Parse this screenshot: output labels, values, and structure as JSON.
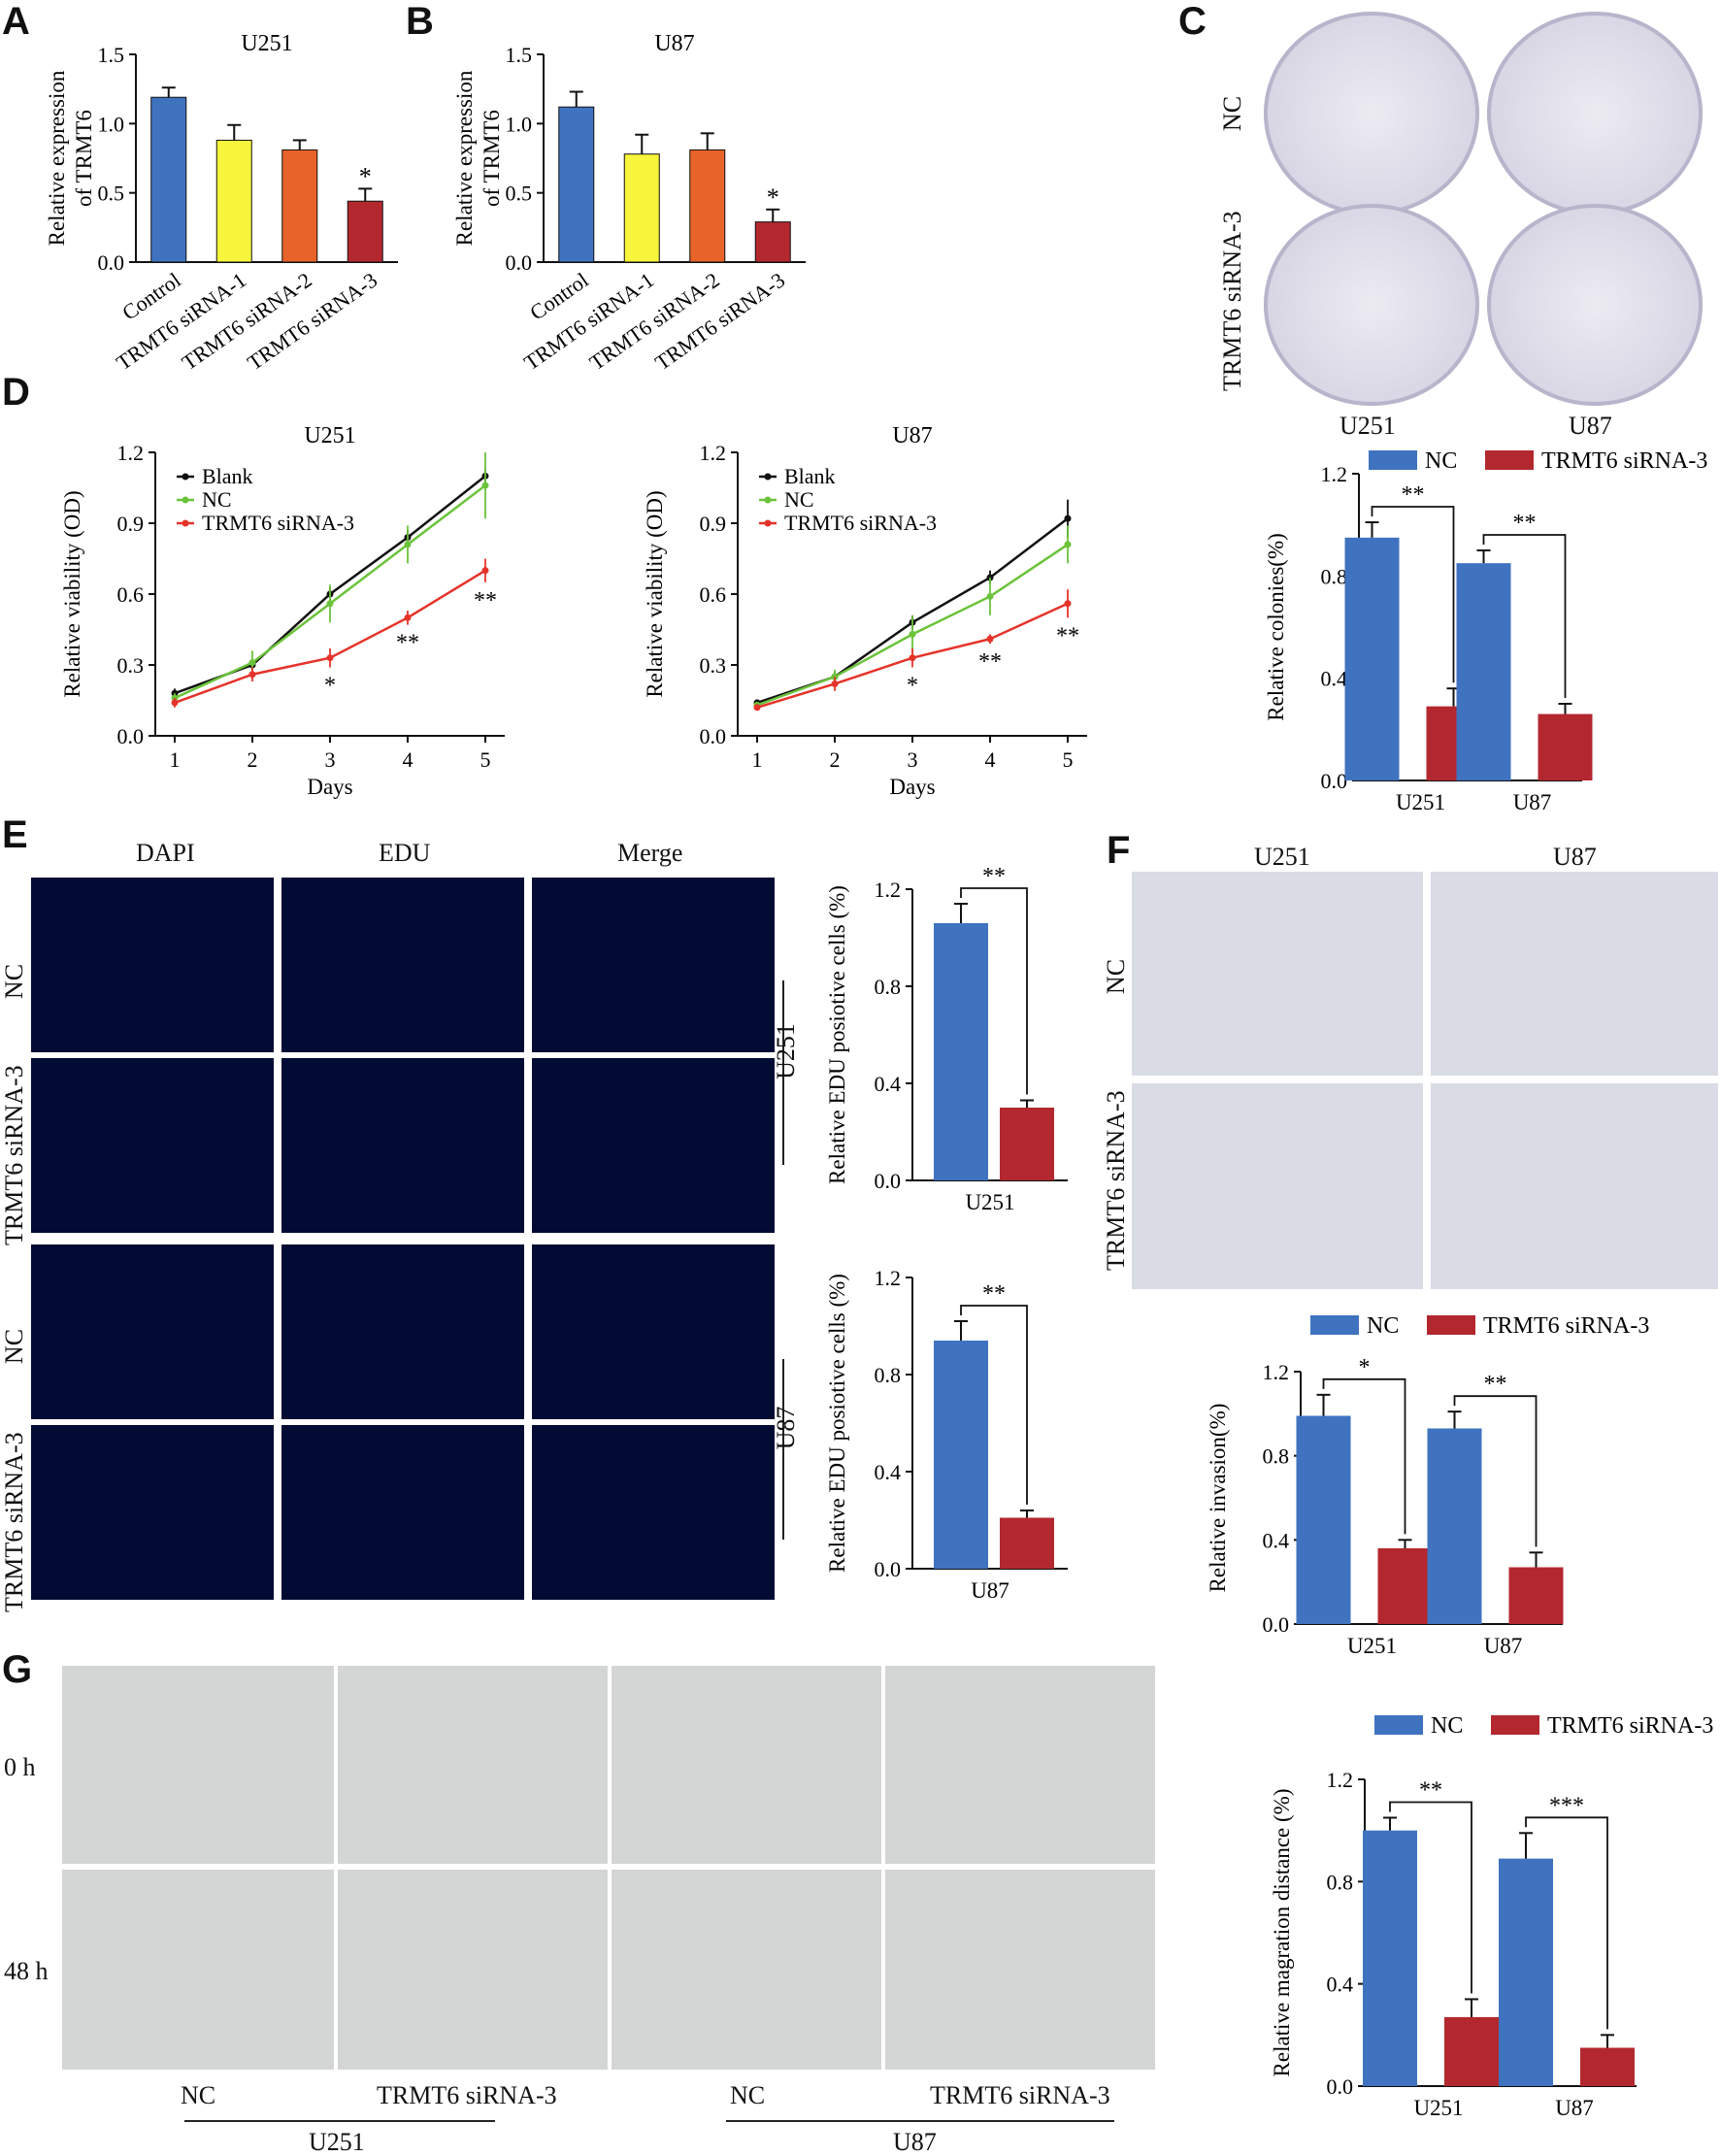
{
  "panels": {
    "A": "A",
    "B": "B",
    "C": "C",
    "D": "D",
    "E": "E",
    "F": "F",
    "G": "G"
  },
  "colors": {
    "blue": "#3f73c0",
    "yellow": "#f7f53c",
    "orange": "#e8632a",
    "red": "#b3282f",
    "black": "#111111",
    "green": "#6bc33a",
    "linered": "#e5332a"
  },
  "chart_data": [
    {
      "id": "A",
      "type": "bar",
      "title": "U251",
      "ylabel": "Relative expression of TRMT6",
      "ylabel_lines": [
        "Relative expression",
        "of TRMT6"
      ],
      "categories": [
        "Control",
        "TRMT6 siRNA-1",
        "TRMT6 siRNA-2",
        "TRMT6 siRNA-3"
      ],
      "values": [
        1.19,
        0.88,
        0.81,
        0.44
      ],
      "errors": [
        0.07,
        0.11,
        0.07,
        0.09
      ],
      "annotations": [
        "",
        "",
        "",
        "*"
      ],
      "ylim": [
        0,
        1.5
      ],
      "yticks": [
        "0.0",
        "0.5",
        "1.0",
        "1.5"
      ]
    },
    {
      "id": "B",
      "type": "bar",
      "title": "U87",
      "ylabel": "Relative expression of TRMT6",
      "ylabel_lines": [
        "Relative expression",
        "of TRMT6"
      ],
      "categories": [
        "Control",
        "TRMT6 siRNA-1",
        "TRMT6 siRNA-2",
        "TRMT6 siRNA-3"
      ],
      "values": [
        1.12,
        0.78,
        0.81,
        0.29
      ],
      "errors": [
        0.11,
        0.14,
        0.12,
        0.09
      ],
      "annotations": [
        "",
        "",
        "",
        "*"
      ],
      "ylim": [
        0,
        1.5
      ],
      "yticks": [
        "0.0",
        "0.5",
        "1.0",
        "1.5"
      ]
    },
    {
      "id": "D1",
      "type": "line",
      "title": "U251",
      "xlabel": "Days",
      "ylabel": "Relative viability (OD)",
      "x": [
        1,
        2,
        3,
        4,
        5
      ],
      "ylim": [
        0,
        1.2
      ],
      "yticks": [
        "0.0",
        "0.3",
        "0.6",
        "0.9",
        "1.2"
      ],
      "series": [
        {
          "name": "Blank",
          "values": [
            0.18,
            0.3,
            0.6,
            0.84,
            1.1
          ],
          "errors": [
            0.02,
            0.02,
            0.03,
            0.03,
            0.03
          ]
        },
        {
          "name": "NC",
          "values": [
            0.16,
            0.31,
            0.56,
            0.81,
            1.06
          ],
          "errors": [
            0.02,
            0.05,
            0.08,
            0.08,
            0.14
          ]
        },
        {
          "name": "TRMT6 siRNA-3",
          "values": [
            0.14,
            0.26,
            0.33,
            0.5,
            0.7
          ],
          "errors": [
            0.02,
            0.03,
            0.04,
            0.03,
            0.05
          ]
        }
      ],
      "annotations": [
        {
          "x": 3,
          "text": "*"
        },
        {
          "x": 4,
          "text": "**"
        },
        {
          "x": 5,
          "text": "**"
        }
      ]
    },
    {
      "id": "D2",
      "type": "line",
      "title": "U87",
      "xlabel": "Days",
      "ylabel": "Relative viability (OD)",
      "x": [
        1,
        2,
        3,
        4,
        5
      ],
      "ylim": [
        0,
        1.2
      ],
      "yticks": [
        "0.0",
        "0.3",
        "0.6",
        "0.9",
        "1.2"
      ],
      "series": [
        {
          "name": "Blank",
          "values": [
            0.14,
            0.25,
            0.48,
            0.67,
            0.92
          ],
          "errors": [
            0.01,
            0.02,
            0.03,
            0.03,
            0.08
          ]
        },
        {
          "name": "NC",
          "values": [
            0.13,
            0.25,
            0.43,
            0.59,
            0.81
          ],
          "errors": [
            0.01,
            0.03,
            0.08,
            0.08,
            0.08
          ]
        },
        {
          "name": "TRMT6 siRNA-3",
          "values": [
            0.12,
            0.22,
            0.33,
            0.41,
            0.56
          ],
          "errors": [
            0.01,
            0.03,
            0.04,
            0.02,
            0.06
          ]
        }
      ],
      "annotations": [
        {
          "x": 3,
          "text": "*"
        },
        {
          "x": 4,
          "text": "**"
        },
        {
          "x": 5,
          "text": "**"
        }
      ]
    },
    {
      "id": "C",
      "type": "bar",
      "ylabel": "Relative colonies(%)",
      "categories": [
        "U251",
        "U87"
      ],
      "series": [
        {
          "name": "NC",
          "values": [
            0.95,
            0.85
          ],
          "errors": [
            0.06,
            0.05
          ]
        },
        {
          "name": "TRMT6 siRNA-3",
          "values": [
            0.29,
            0.26
          ],
          "errors": [
            0.07,
            0.04
          ]
        }
      ],
      "significance": [
        "**",
        "**"
      ],
      "ylim": [
        0,
        1.2
      ],
      "yticks": [
        "0.0",
        "0.4",
        "0.8",
        "1.2"
      ]
    },
    {
      "id": "E1",
      "type": "bar",
      "ylabel": "Relative EDU posiotive cells (%)",
      "xlabel": "U251",
      "categories": [
        "NC",
        "TRMT6 siRNA-3"
      ],
      "values": [
        1.06,
        0.3
      ],
      "errors": [
        0.08,
        0.03
      ],
      "significance": "**",
      "ylim": [
        0,
        1.2
      ],
      "yticks": [
        "0.0",
        "0.4",
        "0.8",
        "1.2"
      ]
    },
    {
      "id": "E2",
      "type": "bar",
      "ylabel": "Relative EDU posiotive cells (%)",
      "xlabel": "U87",
      "categories": [
        "NC",
        "TRMT6 siRNA-3"
      ],
      "values": [
        0.94,
        0.21
      ],
      "errors": [
        0.08,
        0.03
      ],
      "significance": "**",
      "ylim": [
        0,
        1.2
      ],
      "yticks": [
        "0.0",
        "0.4",
        "0.8",
        "1.2"
      ]
    },
    {
      "id": "F",
      "type": "bar",
      "ylabel": "Relative invasion(%)",
      "categories": [
        "U251",
        "U87"
      ],
      "series": [
        {
          "name": "NC",
          "values": [
            0.99,
            0.93
          ],
          "errors": [
            0.1,
            0.08
          ]
        },
        {
          "name": "TRMT6 siRNA-3",
          "values": [
            0.36,
            0.27
          ],
          "errors": [
            0.04,
            0.07
          ]
        }
      ],
      "significance": [
        "*",
        "**"
      ],
      "ylim": [
        0,
        1.2
      ],
      "yticks": [
        "0.0",
        "0.4",
        "0.8",
        "1.2"
      ]
    },
    {
      "id": "G",
      "type": "bar",
      "ylabel": "Relative magration distance (%)",
      "categories": [
        "U251",
        "U87"
      ],
      "series": [
        {
          "name": "NC",
          "values": [
            1.0,
            0.89
          ],
          "errors": [
            0.05,
            0.1
          ]
        },
        {
          "name": "TRMT6 siRNA-3",
          "values": [
            0.27,
            0.15
          ],
          "errors": [
            0.07,
            0.05
          ]
        }
      ],
      "significance": [
        "**",
        "***"
      ],
      "ylim": [
        0,
        1.2
      ],
      "yticks": [
        "0.0",
        "0.4",
        "0.8",
        "1.2"
      ]
    }
  ],
  "images": {
    "c_cols": [
      "U251",
      "U87"
    ],
    "c_rows": [
      "NC",
      "TRMT6 siRNA-3"
    ],
    "e_cols": [
      "DAPI",
      "EDU",
      "Merge"
    ],
    "e_rows": [
      "NC",
      "TRMT6 siRNA-3",
      "NC",
      "TRMT6 siRNA-3"
    ],
    "e_groups": [
      "U251",
      "U87"
    ],
    "f_cols": [
      "U251",
      "U87"
    ],
    "f_rows": [
      "NC",
      "TRMT6 siRNA-3"
    ],
    "g_rows": [
      "0 h",
      "48 h"
    ],
    "g_cols": [
      "NC",
      "TRMT6 siRNA-3",
      "NC",
      "TRMT6 siRNA-3"
    ],
    "g_groups": [
      "U251",
      "U87"
    ]
  }
}
